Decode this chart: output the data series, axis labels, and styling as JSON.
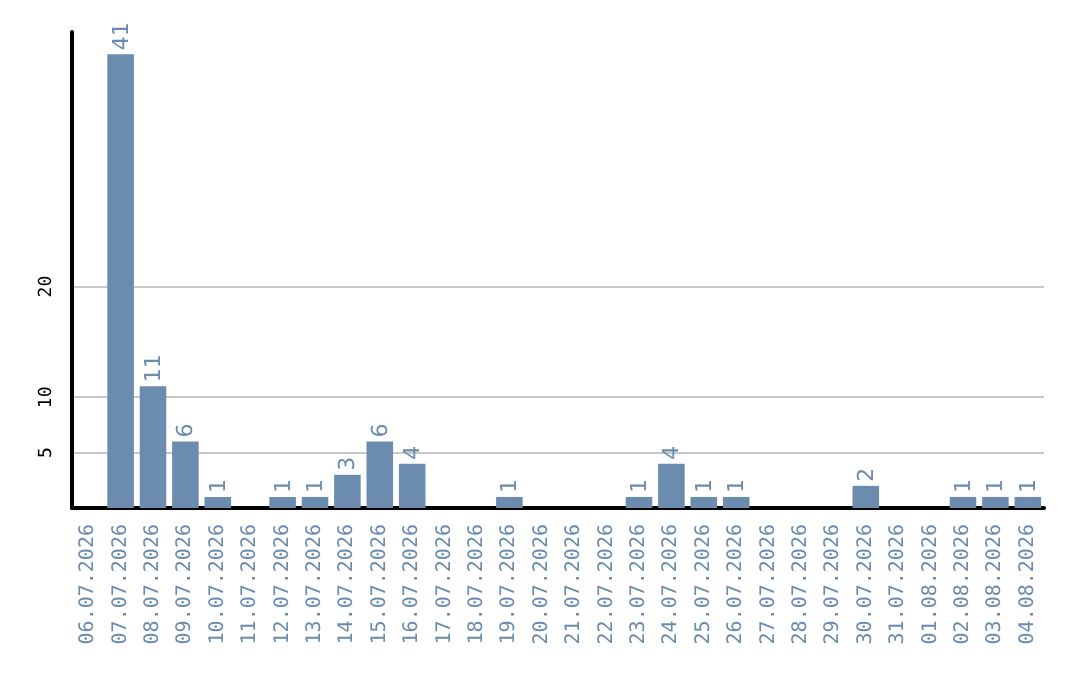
{
  "chart_data": {
    "type": "bar",
    "categories": [
      "06.07.2026",
      "07.07.2026",
      "08.07.2026",
      "09.07.2026",
      "10.07.2026",
      "11.07.2026",
      "12.07.2026",
      "13.07.2026",
      "14.07.2026",
      "15.07.2026",
      "16.07.2026",
      "17.07.2026",
      "18.07.2026",
      "19.07.2026",
      "20.07.2026",
      "21.07.2026",
      "22.07.2026",
      "23.07.2026",
      "24.07.2026",
      "25.07.2026",
      "26.07.2026",
      "27.07.2026",
      "28.07.2026",
      "29.07.2026",
      "30.07.2026",
      "31.07.2026",
      "01.08.2026",
      "02.08.2026",
      "03.08.2026",
      "04.08.2026"
    ],
    "values": [
      0,
      41,
      11,
      6,
      1,
      0,
      1,
      1,
      3,
      6,
      4,
      0,
      0,
      1,
      0,
      0,
      0,
      1,
      4,
      1,
      1,
      0,
      0,
      0,
      2,
      0,
      0,
      1,
      1,
      1
    ],
    "value_labels": [
      null,
      "41",
      "11",
      "6",
      "1",
      null,
      "1",
      "1",
      "3",
      "6",
      "4",
      null,
      null,
      "1",
      null,
      null,
      null,
      "1",
      "4",
      "1",
      "1",
      null,
      null,
      null,
      "2",
      null,
      null,
      "1",
      "1",
      "1"
    ],
    "color": "#6b8cae",
    "ylim": [
      0,
      43
    ],
    "yticks": [
      5,
      10,
      20
    ],
    "grid": "y"
  }
}
